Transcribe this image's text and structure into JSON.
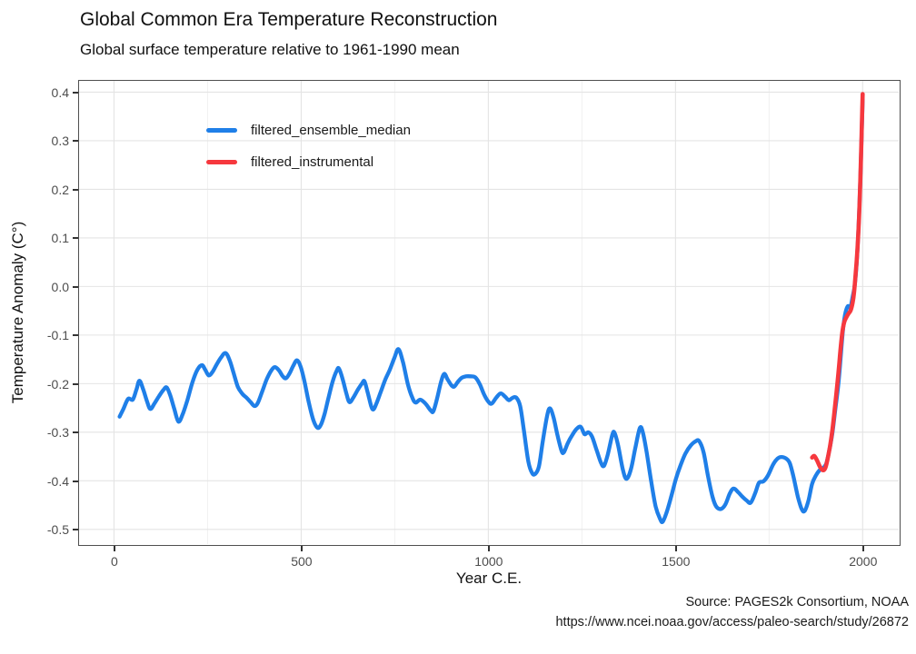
{
  "header": {
    "title": "Global Common Era Temperature Reconstruction",
    "subtitle": "Global surface temperature relative to 1961-1990 mean"
  },
  "caption": {
    "line1": "Source: PAGES2k Consortium, NOAA",
    "line2": "https://www.ncei.noaa.gov/access/paleo-search/study/26872"
  },
  "colors": {
    "blue": "#1f7fe8",
    "red": "#f6383e",
    "grid_major": "#e4e4e4",
    "grid_minor": "#f0f0f0",
    "panel_border": "#4f4f4f",
    "tick_mark": "#333333",
    "tick_label": "#4d4d4d",
    "text": "#1a1a1a"
  },
  "chart_data": {
    "type": "line",
    "title": "Global Common Era Temperature Reconstruction",
    "subtitle": "Global surface temperature relative to 1961-1990 mean",
    "xlabel": "Year C.E.",
    "ylabel": "Temperature Anomaly (C°)",
    "xlim": [
      -97,
      2100
    ],
    "ylim": [
      -0.533,
      0.426
    ],
    "x_ticks": [
      0,
      500,
      1000,
      1500,
      2000
    ],
    "x_minor_gridlines": [
      250,
      750,
      1250,
      1750
    ],
    "y_ticks": [
      0.4,
      0.3,
      0.2,
      0.1,
      0.0,
      -0.1,
      -0.2,
      -0.3,
      -0.4,
      -0.5
    ],
    "y_tick_labels": [
      "0.4",
      "0.3",
      "0.2",
      "0.1",
      "0.0",
      "-0.1",
      "-0.2",
      "-0.3",
      "-0.4",
      "-0.5"
    ],
    "grid": "on (light gray on white, boxed panel)",
    "legend_position": "inside top-left",
    "series": [
      {
        "name": "filtered_ensemble_median",
        "color": "#1f7fe8",
        "stroke_width": 4.3,
        "points": [
          [
            15,
            -0.268
          ],
          [
            25,
            -0.252
          ],
          [
            38,
            -0.231
          ],
          [
            50,
            -0.233
          ],
          [
            60,
            -0.212
          ],
          [
            68,
            -0.194
          ],
          [
            78,
            -0.212
          ],
          [
            88,
            -0.236
          ],
          [
            97,
            -0.252
          ],
          [
            108,
            -0.241
          ],
          [
            120,
            -0.226
          ],
          [
            132,
            -0.213
          ],
          [
            141,
            -0.208
          ],
          [
            151,
            -0.226
          ],
          [
            161,
            -0.252
          ],
          [
            172,
            -0.278
          ],
          [
            183,
            -0.264
          ],
          [
            196,
            -0.234
          ],
          [
            210,
            -0.196
          ],
          [
            223,
            -0.171
          ],
          [
            235,
            -0.162
          ],
          [
            244,
            -0.172
          ],
          [
            253,
            -0.183
          ],
          [
            263,
            -0.176
          ],
          [
            274,
            -0.161
          ],
          [
            286,
            -0.146
          ],
          [
            298,
            -0.137
          ],
          [
            309,
            -0.152
          ],
          [
            319,
            -0.177
          ],
          [
            331,
            -0.207
          ],
          [
            343,
            -0.221
          ],
          [
            354,
            -0.229
          ],
          [
            365,
            -0.238
          ],
          [
            375,
            -0.246
          ],
          [
            384,
            -0.24
          ],
          [
            396,
            -0.216
          ],
          [
            408,
            -0.191
          ],
          [
            420,
            -0.173
          ],
          [
            430,
            -0.166
          ],
          [
            441,
            -0.173
          ],
          [
            450,
            -0.184
          ],
          [
            459,
            -0.189
          ],
          [
            469,
            -0.179
          ],
          [
            479,
            -0.163
          ],
          [
            489,
            -0.152
          ],
          [
            499,
            -0.166
          ],
          [
            509,
            -0.196
          ],
          [
            521,
            -0.241
          ],
          [
            533,
            -0.276
          ],
          [
            544,
            -0.291
          ],
          [
            553,
            -0.284
          ],
          [
            563,
            -0.261
          ],
          [
            573,
            -0.229
          ],
          [
            584,
            -0.196
          ],
          [
            595,
            -0.173
          ],
          [
            601,
            -0.169
          ],
          [
            611,
            -0.191
          ],
          [
            621,
            -0.221
          ],
          [
            629,
            -0.238
          ],
          [
            639,
            -0.229
          ],
          [
            651,
            -0.213
          ],
          [
            663,
            -0.199
          ],
          [
            669,
            -0.195
          ],
          [
            677,
            -0.216
          ],
          [
            687,
            -0.246
          ],
          [
            693,
            -0.253
          ],
          [
            701,
            -0.241
          ],
          [
            713,
            -0.216
          ],
          [
            725,
            -0.191
          ],
          [
            737,
            -0.171
          ],
          [
            749,
            -0.147
          ],
          [
            760,
            -0.129
          ],
          [
            772,
            -0.156
          ],
          [
            785,
            -0.201
          ],
          [
            797,
            -0.229
          ],
          [
            806,
            -0.239
          ],
          [
            818,
            -0.233
          ],
          [
            832,
            -0.241
          ],
          [
            846,
            -0.255
          ],
          [
            853,
            -0.257
          ],
          [
            863,
            -0.231
          ],
          [
            873,
            -0.198
          ],
          [
            882,
            -0.18
          ],
          [
            891,
            -0.191
          ],
          [
            901,
            -0.203
          ],
          [
            909,
            -0.206
          ],
          [
            919,
            -0.196
          ],
          [
            929,
            -0.188
          ],
          [
            941,
            -0.185
          ],
          [
            953,
            -0.185
          ],
          [
            965,
            -0.187
          ],
          [
            977,
            -0.201
          ],
          [
            989,
            -0.223
          ],
          [
            1001,
            -0.238
          ],
          [
            1009,
            -0.241
          ],
          [
            1021,
            -0.229
          ],
          [
            1033,
            -0.22
          ],
          [
            1045,
            -0.227
          ],
          [
            1055,
            -0.234
          ],
          [
            1065,
            -0.229
          ],
          [
            1075,
            -0.229
          ],
          [
            1085,
            -0.246
          ],
          [
            1095,
            -0.296
          ],
          [
            1107,
            -0.361
          ],
          [
            1117,
            -0.384
          ],
          [
            1125,
            -0.386
          ],
          [
            1135,
            -0.371
          ],
          [
            1145,
            -0.321
          ],
          [
            1157,
            -0.266
          ],
          [
            1165,
            -0.251
          ],
          [
            1175,
            -0.272
          ],
          [
            1185,
            -0.307
          ],
          [
            1196,
            -0.339
          ],
          [
            1202,
            -0.341
          ],
          [
            1212,
            -0.323
          ],
          [
            1224,
            -0.306
          ],
          [
            1236,
            -0.293
          ],
          [
            1247,
            -0.289
          ],
          [
            1257,
            -0.304
          ],
          [
            1267,
            -0.3
          ],
          [
            1277,
            -0.309
          ],
          [
            1289,
            -0.336
          ],
          [
            1301,
            -0.363
          ],
          [
            1309,
            -0.369
          ],
          [
            1319,
            -0.346
          ],
          [
            1331,
            -0.306
          ],
          [
            1337,
            -0.301
          ],
          [
            1347,
            -0.328
          ],
          [
            1359,
            -0.376
          ],
          [
            1369,
            -0.396
          ],
          [
            1381,
            -0.376
          ],
          [
            1393,
            -0.331
          ],
          [
            1405,
            -0.291
          ],
          [
            1413,
            -0.301
          ],
          [
            1423,
            -0.341
          ],
          [
            1435,
            -0.401
          ],
          [
            1447,
            -0.453
          ],
          [
            1459,
            -0.479
          ],
          [
            1466,
            -0.484
          ],
          [
            1477,
            -0.463
          ],
          [
            1489,
            -0.431
          ],
          [
            1501,
            -0.396
          ],
          [
            1513,
            -0.369
          ],
          [
            1527,
            -0.343
          ],
          [
            1541,
            -0.327
          ],
          [
            1553,
            -0.319
          ],
          [
            1563,
            -0.318
          ],
          [
            1575,
            -0.341
          ],
          [
            1587,
            -0.391
          ],
          [
            1599,
            -0.433
          ],
          [
            1609,
            -0.453
          ],
          [
            1621,
            -0.458
          ],
          [
            1633,
            -0.449
          ],
          [
            1645,
            -0.426
          ],
          [
            1655,
            -0.416
          ],
          [
            1667,
            -0.423
          ],
          [
            1679,
            -0.433
          ],
          [
            1691,
            -0.441
          ],
          [
            1701,
            -0.445
          ],
          [
            1713,
            -0.425
          ],
          [
            1723,
            -0.404
          ],
          [
            1735,
            -0.401
          ],
          [
            1747,
            -0.389
          ],
          [
            1761,
            -0.366
          ],
          [
            1773,
            -0.354
          ],
          [
            1783,
            -0.351
          ],
          [
            1795,
            -0.354
          ],
          [
            1805,
            -0.363
          ],
          [
            1815,
            -0.391
          ],
          [
            1827,
            -0.433
          ],
          [
            1837,
            -0.458
          ],
          [
            1845,
            -0.462
          ],
          [
            1855,
            -0.441
          ],
          [
            1865,
            -0.406
          ],
          [
            1875,
            -0.389
          ],
          [
            1885,
            -0.378
          ],
          [
            1895,
            -0.373
          ],
          [
            1903,
            -0.364
          ],
          [
            1911,
            -0.337
          ],
          [
            1919,
            -0.303
          ],
          [
            1927,
            -0.253
          ],
          [
            1935,
            -0.202
          ],
          [
            1941,
            -0.148
          ],
          [
            1947,
            -0.092
          ],
          [
            1953,
            -0.058
          ],
          [
            1960,
            -0.041
          ],
          [
            1967,
            -0.043
          ],
          [
            1973,
            -0.022
          ],
          [
            1979,
            0.004
          ],
          [
            1985,
            0.06
          ],
          [
            1990,
            0.142
          ],
          [
            1994,
            0.224
          ],
          [
            1997,
            0.305
          ],
          [
            1999,
            0.357
          ],
          [
            2000,
            0.385
          ]
        ]
      },
      {
        "name": "filtered_instrumental",
        "color": "#f6383e",
        "stroke_width": 4.6,
        "points": [
          [
            1865,
            -0.352
          ],
          [
            1871,
            -0.349
          ],
          [
            1878,
            -0.358
          ],
          [
            1886,
            -0.371
          ],
          [
            1893,
            -0.378
          ],
          [
            1900,
            -0.374
          ],
          [
            1906,
            -0.356
          ],
          [
            1912,
            -0.332
          ],
          [
            1918,
            -0.302
          ],
          [
            1924,
            -0.262
          ],
          [
            1930,
            -0.218
          ],
          [
            1936,
            -0.172
          ],
          [
            1941,
            -0.128
          ],
          [
            1946,
            -0.092
          ],
          [
            1951,
            -0.073
          ],
          [
            1956,
            -0.064
          ],
          [
            1962,
            -0.056
          ],
          [
            1968,
            -0.049
          ],
          [
            1973,
            -0.034
          ],
          [
            1977,
            -0.013
          ],
          [
            1981,
            0.024
          ],
          [
            1985,
            0.064
          ],
          [
            1989,
            0.12
          ],
          [
            1992,
            0.176
          ],
          [
            1995,
            0.25
          ],
          [
            1997,
            0.31
          ],
          [
            1999,
            0.368
          ],
          [
            2000,
            0.396
          ]
        ]
      }
    ]
  }
}
